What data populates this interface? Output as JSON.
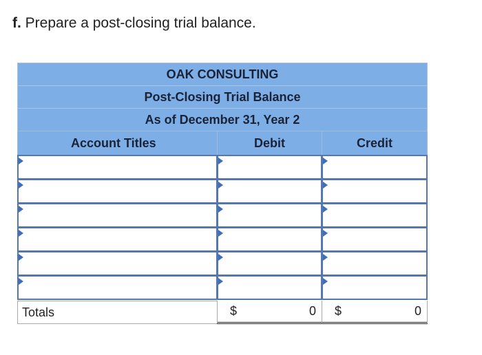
{
  "question": {
    "letter": "f.",
    "text": "Prepare a post-closing trial balance."
  },
  "table": {
    "company": "OAK CONSULTING",
    "title": "Post-Closing Trial Balance",
    "date": "As of December 31, Year 2",
    "columns": [
      "Account Titles",
      "Debit",
      "Credit"
    ],
    "rows": [
      [
        "",
        "",
        ""
      ],
      [
        "",
        "",
        ""
      ],
      [
        "",
        "",
        ""
      ],
      [
        "",
        "",
        ""
      ],
      [
        "",
        "",
        ""
      ],
      [
        "",
        "",
        ""
      ]
    ],
    "totals": {
      "label": "Totals",
      "debit_symbol": "$",
      "debit": "0",
      "credit_symbol": "$",
      "credit": "0"
    }
  }
}
